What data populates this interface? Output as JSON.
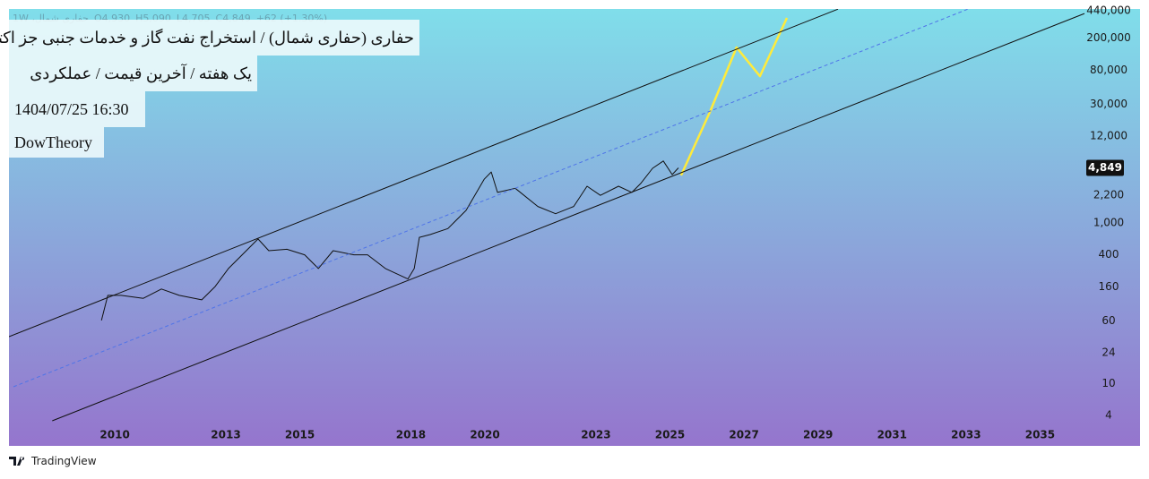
{
  "chart_data": {
    "type": "line",
    "log_scale": true,
    "title": "حفاری (حفاری شمال) / استخراج نفت گاز و خدمات جنبی جز اکتشاف",
    "subtitle": "یک هفته / آخرین قیمت / عملکردی",
    "timestamp": "1404/07/25 16:30",
    "author": "DowTheory",
    "ohlc": {
      "symbol": "حفاری شمال، 1W",
      "open": "O4,930",
      "high": "H5,090",
      "low": "L4,705",
      "close": "C4,849",
      "change": "+62 (+1.30%)"
    },
    "brand": "TradingView",
    "xlim": [
      2007.14,
      2036.2
    ],
    "xticks": [
      2010,
      2013,
      2015,
      2018,
      2020,
      2023,
      2025,
      2027,
      2029,
      2031,
      2033,
      2035
    ],
    "ylim": [
      1.67,
      462000
    ],
    "yticks": [
      4,
      10,
      24,
      60,
      160,
      400,
      {
        "value": 1000,
        "label": "1,000"
      },
      {
        "value": 2200,
        "label": "2,200"
      },
      {
        "value": 12000,
        "label": "12,000"
      },
      {
        "value": 30000,
        "label": "30,000"
      },
      {
        "value": 80000,
        "label": "80,000"
      },
      {
        "value": 200000,
        "label": "200,000"
      },
      {
        "value": 440000,
        "label": "440,000"
      }
    ],
    "series": [
      {
        "color": "#111111",
        "width": 1,
        "x": [
          2009.64,
          2009.81,
          2010.17,
          2010.77,
          2011.26,
          2011.74,
          2012.35,
          2012.71,
          2013.07,
          2013.44,
          2013.87,
          2014.16,
          2014.65,
          2015.13,
          2015.5,
          2015.9,
          2016.46,
          2016.83,
          2017.31,
          2017.92,
          2018.09,
          2018.23,
          2018.52,
          2019.0,
          2019.49,
          2019.98,
          2020.17,
          2020.34,
          2020.82,
          2021.43,
          2021.91,
          2022.4,
          2022.76,
          2023.12,
          2023.61,
          2023.97,
          2024.21,
          2024.53,
          2024.82,
          2025.06,
          2025.23
        ],
        "values": [
          61,
          125,
          125,
          115,
          150,
          125,
          110,
          161,
          270,
          400,
          630,
          450,
          470,
          400,
          270,
          450,
          400,
          400,
          270,
          200,
          270,
          660,
          715,
          850,
          1430,
          3500,
          4300,
          2400,
          2700,
          1600,
          1300,
          1600,
          2860,
          2200,
          2860,
          2400,
          3100,
          4780,
          5900,
          4000,
          4849
        ],
        "value_labels": [
          null,
          null,
          null,
          null,
          null,
          null,
          null,
          null,
          null,
          null,
          null,
          null,
          null,
          null,
          null,
          null,
          null,
          null,
          null,
          null,
          null,
          null,
          null,
          null,
          null,
          null,
          null,
          null,
          null,
          null,
          null,
          null,
          null,
          null,
          null,
          null,
          null,
          null,
          null,
          null,
          "4,849"
        ]
      },
      {
        "color": "#ffeb3b",
        "width": 2.5,
        "x": [
          2025.3,
          2026.08,
          2026.8,
          2027.43,
          2028.16
        ],
        "values": [
          3900,
          24100,
          153000,
          67100,
          357000
        ]
      },
      {
        "color": "#111111",
        "width": 1,
        "x": [
          2007.14,
          2029.54
        ],
        "values": [
          38.3,
          460000
        ]
      },
      {
        "color": "#111111",
        "width": 1,
        "x": [
          2008.31,
          2036.2
        ],
        "values": [
          3.43,
          405000
        ]
      },
      {
        "color": "#4f74e8",
        "width": 1,
        "dashed": true,
        "x": [
          2007.26,
          2033.05
        ],
        "values": [
          9.1,
          460000
        ]
      }
    ]
  }
}
